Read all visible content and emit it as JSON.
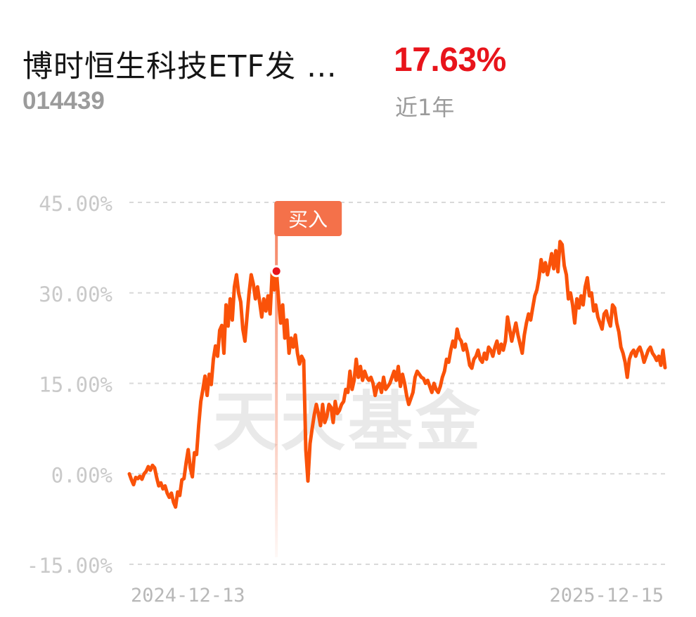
{
  "header": {
    "fund_name": "博时恒生科技ETF发 …",
    "fund_code": "014439",
    "return_value": "17.63%",
    "period_label": "近1年"
  },
  "colors": {
    "line": "#fa5209",
    "return_positive": "#e8141b",
    "grid": "#d9d9d9",
    "axis_text": "#c9c9c9",
    "marker_badge": "#f4714a",
    "watermark": "#e9e9e9"
  },
  "watermark": "天天基金",
  "chart_data": {
    "type": "line",
    "title": "",
    "xlabel": "",
    "ylabel": "",
    "x_start": "2024-12-13",
    "x_end": "2025-12-15",
    "x_tick_labels": [
      "2024-12-13",
      "2025-12-15"
    ],
    "ylim": [
      -15,
      45
    ],
    "y_ticks": [
      45,
      30,
      15,
      0,
      -15
    ],
    "y_tick_labels": [
      "45.00%",
      "30.00%",
      "15.00%",
      "0.00%",
      "-15.00%"
    ],
    "grid": true,
    "annotations": [
      {
        "label": "买入",
        "index": 70,
        "value": 33.6
      }
    ],
    "series": [
      {
        "values": [
          0.0,
          -1.0,
          -1.8,
          -0.6,
          -0.8,
          -0.4,
          -0.9,
          0.0,
          0.4,
          1.2,
          0.6,
          1.4,
          1.0,
          -0.6,
          -2.0,
          -1.5,
          -2.5,
          -2.0,
          -3.2,
          -3.9,
          -3.2,
          -4.7,
          -5.5,
          -3.0,
          -3.6,
          -1.0,
          -0.8,
          1.8,
          4.0,
          1.0,
          -0.5,
          3.5,
          3.2,
          8.0,
          12.0,
          14.0,
          16.2,
          13.0,
          16.5,
          14.8,
          19.0,
          21.2,
          19.5,
          23.8,
          24.6,
          20.0,
          28.0,
          24.5,
          29.0,
          25.5,
          31.0,
          33.0,
          30.0,
          28.5,
          24.0,
          22.0,
          26.0,
          30.0,
          33.0,
          31.5,
          29.0,
          31.0,
          28.5,
          26.0,
          29.0,
          27.0,
          29.5,
          26.5,
          33.5,
          30.5,
          33.6,
          29.0,
          25.0,
          28.0,
          22.5,
          25.5,
          20.0,
          22.5,
          21.0,
          23.0,
          20.0,
          18.2,
          19.5,
          18.8,
          4.0,
          -1.2,
          5.0,
          7.5,
          9.8,
          11.5,
          10.0,
          8.0,
          11.5,
          8.5,
          9.5,
          11.5,
          11.0,
          8.5,
          12.0,
          10.0,
          10.5,
          11.5,
          12.0,
          14.0,
          13.5,
          17.0,
          14.0,
          15.5,
          19.0,
          16.0,
          17.8,
          15.5,
          17.0,
          16.0,
          15.5,
          16.0,
          15.0,
          13.0,
          14.5,
          15.0,
          13.5,
          16.0,
          14.0,
          14.5,
          15.0,
          16.0,
          17.0,
          15.5,
          17.8,
          14.5,
          16.5,
          15.0,
          13.0,
          11.5,
          12.5,
          13.5,
          16.0,
          17.0,
          16.5,
          16.0,
          15.8,
          15.0,
          15.5,
          14.5,
          13.5,
          15.0,
          14.0,
          13.5,
          14.5,
          16.0,
          17.0,
          19.0,
          18.5,
          20.5,
          22.0,
          21.0,
          24.0,
          22.5,
          22.0,
          20.5,
          21.5,
          20.0,
          18.0,
          17.5,
          19.0,
          19.5,
          20.5,
          19.0,
          18.5,
          20.0,
          19.0,
          21.0,
          20.5,
          19.5,
          21.0,
          22.0,
          20.0,
          21.5,
          20.5,
          22.0,
          26.0,
          24.0,
          22.0,
          23.5,
          25.0,
          23.0,
          21.5,
          20.0,
          23.0,
          25.0,
          26.5,
          25.5,
          27.5,
          29.5,
          30.5,
          32.5,
          35.5,
          33.5,
          35.0,
          33.0,
          34.5,
          36.5,
          34.0,
          37.0,
          33.5,
          38.5,
          38.0,
          34.5,
          33.0,
          29.0,
          30.0,
          28.0,
          25.0,
          29.0,
          27.5,
          29.5,
          28.0,
          31.0,
          32.5,
          29.5,
          30.0,
          27.0,
          28.0,
          26.0,
          25.0,
          24.0,
          26.5,
          27.0,
          25.5,
          24.5,
          28.0,
          27.5,
          25.0,
          23.5,
          21.0,
          20.0,
          18.5,
          16.0,
          19.0,
          20.0,
          20.5,
          19.5,
          20.5,
          21.0,
          20.0,
          18.5,
          19.5,
          20.5,
          21.0,
          20.0,
          19.5,
          18.8,
          19.5,
          18.0,
          20.5,
          17.6
        ]
      }
    ]
  }
}
